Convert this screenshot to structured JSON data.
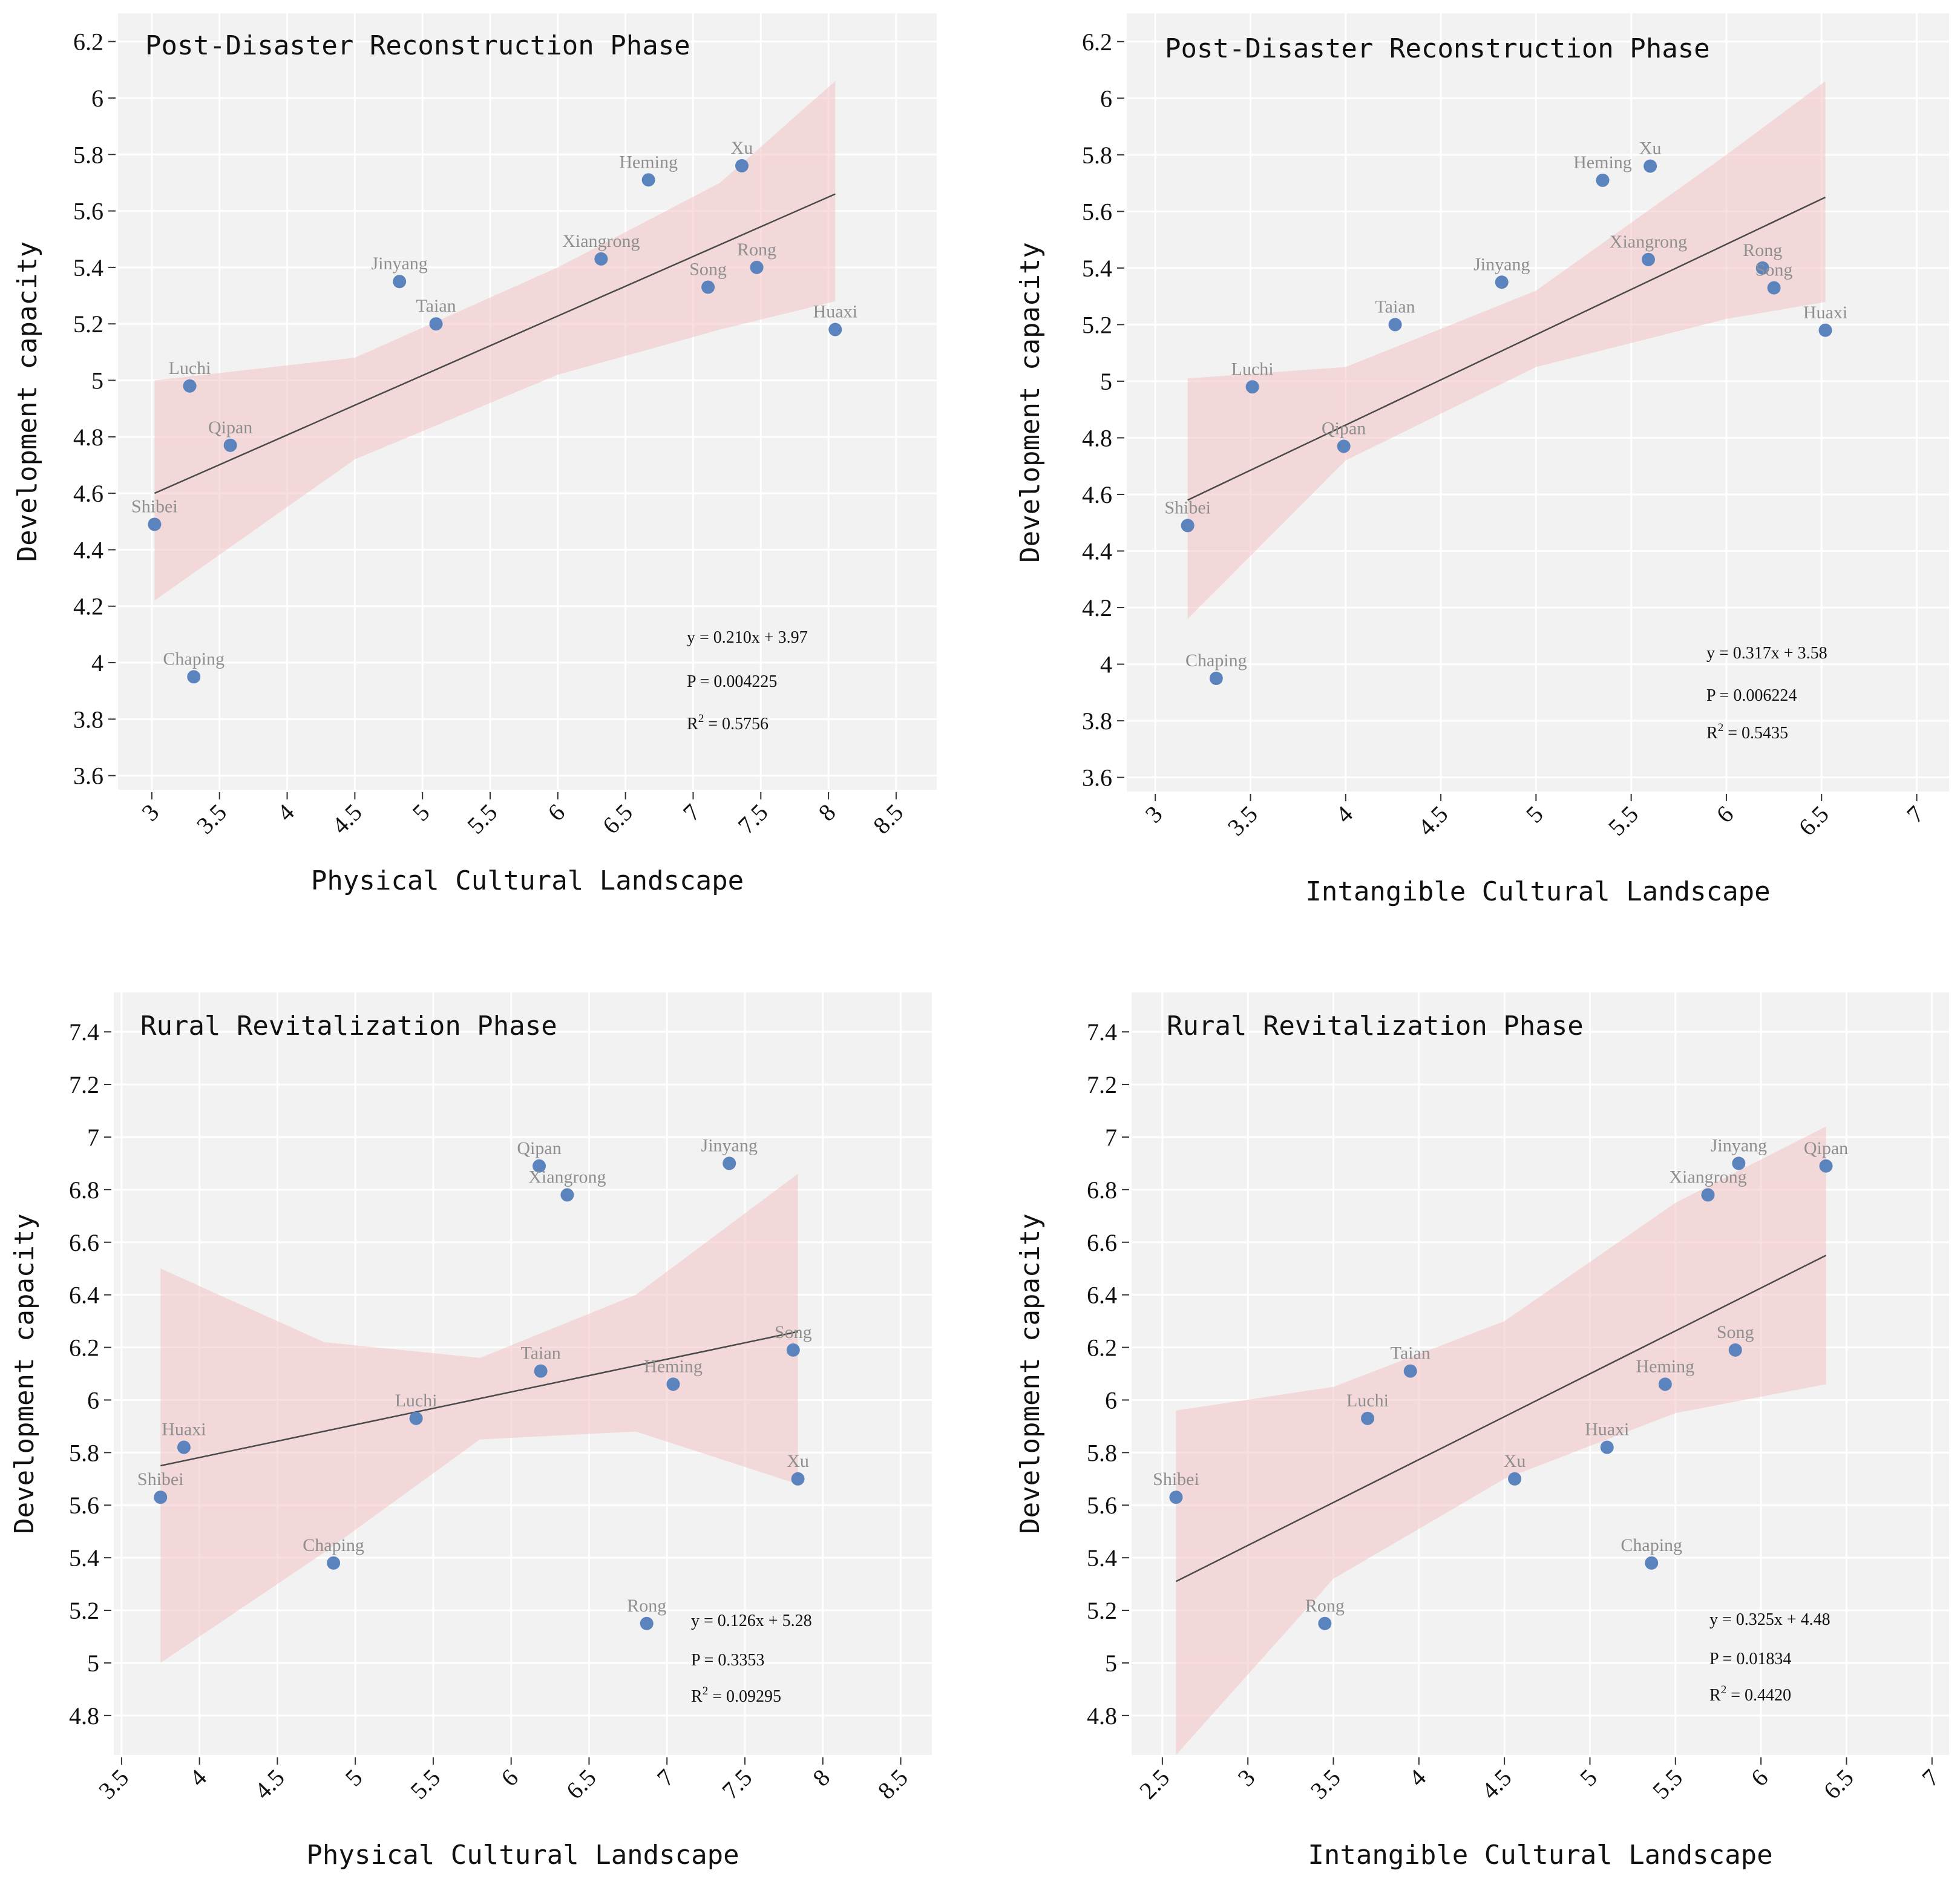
{
  "colors": {
    "background": "#f2f2f2",
    "grid": "#ffffff",
    "point": "#5b84bf",
    "band": "#f4c3c6",
    "fit_line": "#4a4a4a",
    "point_label": "#8f8f8f"
  },
  "chart_data": [
    {
      "type": "scatter",
      "title": "Post-Disaster Reconstruction Phase",
      "xlabel": "Physical Cultural Landscape",
      "ylabel": "Development capacity",
      "xlim": [
        2.75,
        8.8
      ],
      "ylim": [
        3.55,
        6.3
      ],
      "xticks": [
        3,
        3.5,
        4,
        4.5,
        5,
        5.5,
        6,
        6.5,
        7,
        7.5,
        8,
        8.5
      ],
      "yticks": [
        3.6,
        3.8,
        4,
        4.2,
        4.4,
        4.6,
        4.8,
        5,
        5.2,
        5.4,
        5.6,
        5.8,
        6,
        6.2
      ],
      "points": [
        {
          "label": "Shibei",
          "x": 3.02,
          "y": 4.49
        },
        {
          "label": "Luchi",
          "x": 3.28,
          "y": 4.98
        },
        {
          "label": "Chaping",
          "x": 3.31,
          "y": 3.95
        },
        {
          "label": "Qipan",
          "x": 3.58,
          "y": 4.77
        },
        {
          "label": "Jinyang",
          "x": 4.83,
          "y": 5.35
        },
        {
          "label": "Taian",
          "x": 5.1,
          "y": 5.2
        },
        {
          "label": "Xiangrong",
          "x": 6.32,
          "y": 5.43
        },
        {
          "label": "Heming",
          "x": 6.67,
          "y": 5.71
        },
        {
          "label": "Song",
          "x": 7.11,
          "y": 5.33
        },
        {
          "label": "Xu",
          "x": 7.36,
          "y": 5.76
        },
        {
          "label": "Rong",
          "x": 7.47,
          "y": 5.4
        },
        {
          "label": "Huaxi",
          "x": 8.05,
          "y": 5.18
        }
      ],
      "fit": {
        "x": [
          3.02,
          8.05
        ],
        "y": [
          4.6,
          5.66
        ]
      },
      "band": {
        "x": [
          3.02,
          4.5,
          6.0,
          7.2,
          8.05
        ],
        "lower": [
          4.22,
          4.72,
          5.02,
          5.18,
          5.28
        ],
        "upper": [
          5.0,
          5.08,
          5.4,
          5.7,
          6.06
        ]
      },
      "equation": "y = 0.210x + 3.97",
      "p_value": "P = 0.004225",
      "r2_prefix": "R",
      "r2_sup": "2",
      "r2_value": " = 0.5756"
    },
    {
      "type": "scatter",
      "title": "Post-Disaster Reconstruction Phase",
      "xlabel": "Intangible Cultural Landscape",
      "ylabel": "Development capacity",
      "xlim": [
        2.85,
        7.17
      ],
      "ylim": [
        3.55,
        6.3
      ],
      "xticks": [
        3,
        3.5,
        4,
        4.5,
        5,
        5.5,
        6,
        6.5,
        7
      ],
      "yticks": [
        3.6,
        3.8,
        4,
        4.2,
        4.4,
        4.6,
        4.8,
        5,
        5.2,
        5.4,
        5.6,
        5.8,
        6,
        6.2
      ],
      "points": [
        {
          "label": "Shibei",
          "x": 3.17,
          "y": 4.49
        },
        {
          "label": "Chaping",
          "x": 3.32,
          "y": 3.95
        },
        {
          "label": "Luchi",
          "x": 3.51,
          "y": 4.98
        },
        {
          "label": "Qipan",
          "x": 3.99,
          "y": 4.77
        },
        {
          "label": "Taian",
          "x": 4.26,
          "y": 5.2
        },
        {
          "label": "Jinyang",
          "x": 4.82,
          "y": 5.35
        },
        {
          "label": "Heming",
          "x": 5.35,
          "y": 5.71
        },
        {
          "label": "Xu",
          "x": 5.6,
          "y": 5.76
        },
        {
          "label": "Xiangrong",
          "x": 5.59,
          "y": 5.43
        },
        {
          "label": "Rong",
          "x": 6.19,
          "y": 5.4
        },
        {
          "label": "Song",
          "x": 6.25,
          "y": 5.33
        },
        {
          "label": "Huaxi",
          "x": 6.52,
          "y": 5.18
        }
      ],
      "fit": {
        "x": [
          3.17,
          6.52
        ],
        "y": [
          4.58,
          5.65
        ]
      },
      "band": {
        "x": [
          3.17,
          4.0,
          5.0,
          6.0,
          6.52
        ],
        "lower": [
          4.16,
          4.72,
          5.05,
          5.22,
          5.28
        ],
        "upper": [
          5.01,
          5.05,
          5.32,
          5.8,
          6.06
        ]
      },
      "equation": "y = 0.317x + 3.58",
      "p_value": "P = 0.006224",
      "r2_prefix": "R",
      "r2_sup": "2",
      "r2_value": " = 0.5435"
    },
    {
      "type": "scatter",
      "title": "Rural Revitalization Phase",
      "xlabel": "Physical Cultural Landscape",
      "ylabel": "Development capacity",
      "xlim": [
        3.45,
        8.7
      ],
      "ylim": [
        4.65,
        7.55
      ],
      "xticks": [
        3.5,
        4,
        4.5,
        5,
        5.5,
        6,
        6.5,
        7,
        7.5,
        8,
        8.5
      ],
      "yticks": [
        4.8,
        5,
        5.2,
        5.4,
        5.6,
        5.8,
        6,
        6.2,
        6.4,
        6.6,
        6.8,
        7,
        7.2,
        7.4
      ],
      "points": [
        {
          "label": "Shibei",
          "x": 3.75,
          "y": 5.63
        },
        {
          "label": "Huaxi",
          "x": 3.9,
          "y": 5.82
        },
        {
          "label": "Chaping",
          "x": 4.86,
          "y": 5.38
        },
        {
          "label": "Luchi",
          "x": 5.39,
          "y": 5.93
        },
        {
          "label": "Qipan",
          "x": 6.18,
          "y": 6.89
        },
        {
          "label": "Taian",
          "x": 6.19,
          "y": 6.11
        },
        {
          "label": "Xiangrong",
          "x": 6.36,
          "y": 6.78
        },
        {
          "label": "Rong",
          "x": 6.87,
          "y": 5.15
        },
        {
          "label": "Heming",
          "x": 7.04,
          "y": 6.06
        },
        {
          "label": "Jinyang",
          "x": 7.4,
          "y": 6.9
        },
        {
          "label": "Song",
          "x": 7.81,
          "y": 6.19
        },
        {
          "label": "Xu",
          "x": 7.84,
          "y": 5.7
        }
      ],
      "fit": {
        "x": [
          3.75,
          7.84
        ],
        "y": [
          5.75,
          6.26
        ]
      },
      "band": {
        "x": [
          3.75,
          4.8,
          5.8,
          6.8,
          7.84
        ],
        "lower": [
          5.0,
          5.42,
          5.85,
          5.88,
          5.68
        ],
        "upper": [
          6.5,
          6.22,
          6.16,
          6.4,
          6.86
        ]
      },
      "equation": "y = 0.126x + 5.28",
      "p_value": "P = 0.3353",
      "r2_prefix": "R",
      "r2_sup": "2",
      "r2_value": " = 0.09295"
    },
    {
      "type": "scatter",
      "title": "Rural Revitalization Phase",
      "xlabel": "Intangible Cultural Landscape",
      "ylabel": "Development capacity",
      "xlim": [
        2.32,
        7.1
      ],
      "ylim": [
        4.65,
        7.55
      ],
      "xticks": [
        2.5,
        3,
        3.5,
        4,
        4.5,
        5,
        5.5,
        6,
        6.5,
        7
      ],
      "yticks": [
        4.8,
        5,
        5.2,
        5.4,
        5.6,
        5.8,
        6,
        6.2,
        6.4,
        6.6,
        6.8,
        7,
        7.2,
        7.4
      ],
      "points": [
        {
          "label": "Shibei",
          "x": 2.58,
          "y": 5.63
        },
        {
          "label": "Rong",
          "x": 3.45,
          "y": 5.15
        },
        {
          "label": "Luchi",
          "x": 3.7,
          "y": 5.93
        },
        {
          "label": "Taian",
          "x": 3.95,
          "y": 6.11
        },
        {
          "label": "Xu",
          "x": 4.56,
          "y": 5.7
        },
        {
          "label": "Huaxi",
          "x": 5.1,
          "y": 5.82
        },
        {
          "label": "Chaping",
          "x": 5.36,
          "y": 5.38
        },
        {
          "label": "Heming",
          "x": 5.44,
          "y": 6.06
        },
        {
          "label": "Xiangrong",
          "x": 5.69,
          "y": 6.78
        },
        {
          "label": "Song",
          "x": 5.85,
          "y": 6.19
        },
        {
          "label": "Jinyang",
          "x": 5.87,
          "y": 6.9
        },
        {
          "label": "Qipan",
          "x": 6.38,
          "y": 6.89
        }
      ],
      "fit": {
        "x": [
          2.58,
          6.38
        ],
        "y": [
          5.31,
          6.55
        ]
      },
      "band": {
        "x": [
          2.58,
          3.5,
          4.5,
          5.5,
          6.38
        ],
        "lower": [
          4.65,
          5.32,
          5.7,
          5.95,
          6.06
        ],
        "upper": [
          5.96,
          6.05,
          6.3,
          6.75,
          7.04
        ]
      },
      "equation": "y = 0.325x + 4.48",
      "p_value": "P = 0.01834",
      "r2_prefix": "R",
      "r2_sup": "2",
      "r2_value": " = 0.4420"
    }
  ]
}
